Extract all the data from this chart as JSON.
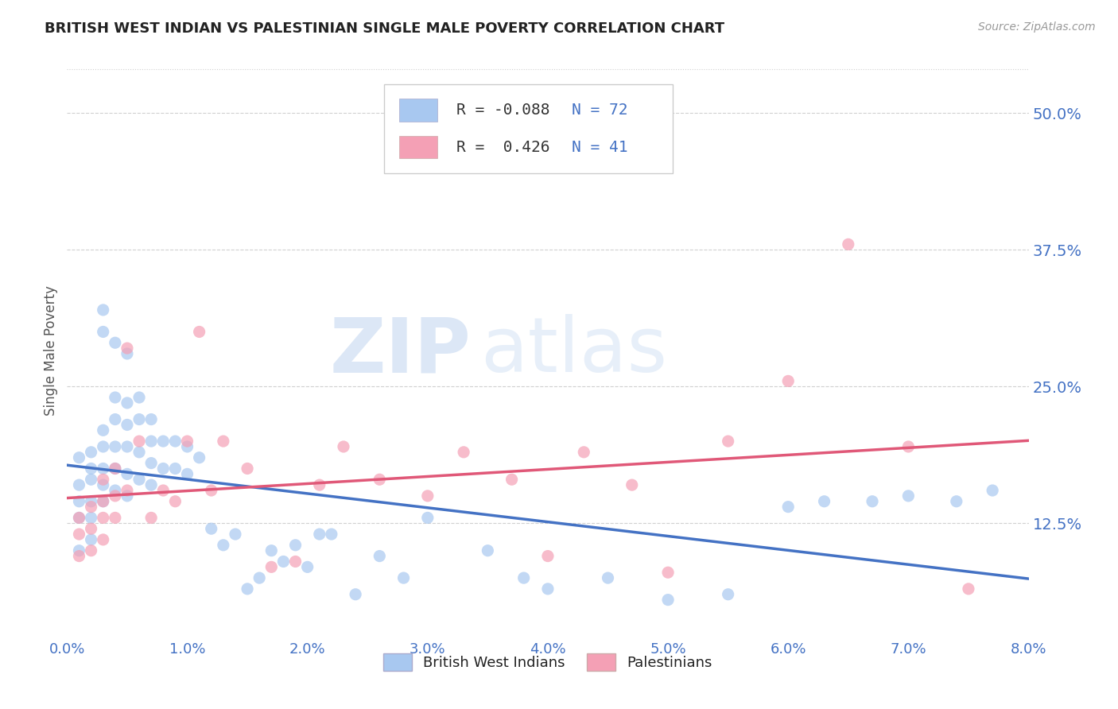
{
  "title": "BRITISH WEST INDIAN VS PALESTINIAN SINGLE MALE POVERTY CORRELATION CHART",
  "source": "Source: ZipAtlas.com",
  "ylabel": "Single Male Poverty",
  "xlim": [
    0.0,
    0.08
  ],
  "ylim": [
    0.02,
    0.545
  ],
  "yticks": [
    0.125,
    0.25,
    0.375,
    0.5
  ],
  "ytick_labels": [
    "12.5%",
    "25.0%",
    "37.5%",
    "50.0%"
  ],
  "xticks": [
    0.0,
    0.01,
    0.02,
    0.03,
    0.04,
    0.05,
    0.06,
    0.07,
    0.08
  ],
  "xtick_labels": [
    "0.0%",
    "1.0%",
    "2.0%",
    "3.0%",
    "4.0%",
    "5.0%",
    "6.0%",
    "7.0%",
    "8.0%"
  ],
  "group1_name": "British West Indians",
  "group1_color": "#a8c8f0",
  "group1_R": -0.088,
  "group1_N": 72,
  "group2_name": "Palestinians",
  "group2_color": "#f4a0b5",
  "group2_R": 0.426,
  "group2_N": 41,
  "trend1_color": "#4472c4",
  "trend2_color": "#e05878",
  "watermark_zip": "ZIP",
  "watermark_atlas": "atlas",
  "background_color": "#ffffff",
  "grid_color": "#d0d0d0",
  "title_color": "#222222",
  "axis_label_color": "#555555",
  "tick_label_color": "#4472c4",
  "legend_text_color": "#333333",
  "legend_val_color": "#4472c4",
  "bwi_x": [
    0.001,
    0.001,
    0.001,
    0.001,
    0.001,
    0.002,
    0.002,
    0.002,
    0.002,
    0.002,
    0.002,
    0.003,
    0.003,
    0.003,
    0.003,
    0.003,
    0.003,
    0.003,
    0.004,
    0.004,
    0.004,
    0.004,
    0.004,
    0.004,
    0.005,
    0.005,
    0.005,
    0.005,
    0.005,
    0.005,
    0.006,
    0.006,
    0.006,
    0.006,
    0.007,
    0.007,
    0.007,
    0.007,
    0.008,
    0.008,
    0.009,
    0.009,
    0.01,
    0.01,
    0.011,
    0.012,
    0.013,
    0.014,
    0.015,
    0.016,
    0.017,
    0.018,
    0.019,
    0.02,
    0.021,
    0.022,
    0.024,
    0.026,
    0.028,
    0.03,
    0.035,
    0.038,
    0.04,
    0.045,
    0.05,
    0.055,
    0.06,
    0.063,
    0.067,
    0.07,
    0.074,
    0.077
  ],
  "bwi_y": [
    0.185,
    0.16,
    0.145,
    0.13,
    0.1,
    0.19,
    0.175,
    0.165,
    0.145,
    0.13,
    0.11,
    0.32,
    0.3,
    0.21,
    0.195,
    0.175,
    0.16,
    0.145,
    0.29,
    0.24,
    0.22,
    0.195,
    0.175,
    0.155,
    0.28,
    0.235,
    0.215,
    0.195,
    0.17,
    0.15,
    0.24,
    0.22,
    0.19,
    0.165,
    0.22,
    0.2,
    0.18,
    0.16,
    0.2,
    0.175,
    0.2,
    0.175,
    0.195,
    0.17,
    0.185,
    0.12,
    0.105,
    0.115,
    0.065,
    0.075,
    0.1,
    0.09,
    0.105,
    0.085,
    0.115,
    0.115,
    0.06,
    0.095,
    0.075,
    0.13,
    0.1,
    0.075,
    0.065,
    0.075,
    0.055,
    0.06,
    0.14,
    0.145,
    0.145,
    0.15,
    0.145,
    0.155
  ],
  "pal_x": [
    0.001,
    0.001,
    0.001,
    0.002,
    0.002,
    0.002,
    0.003,
    0.003,
    0.003,
    0.003,
    0.004,
    0.004,
    0.004,
    0.005,
    0.005,
    0.006,
    0.007,
    0.008,
    0.009,
    0.01,
    0.011,
    0.012,
    0.013,
    0.015,
    0.017,
    0.019,
    0.021,
    0.023,
    0.026,
    0.03,
    0.033,
    0.037,
    0.04,
    0.043,
    0.047,
    0.05,
    0.055,
    0.06,
    0.065,
    0.07,
    0.075
  ],
  "pal_y": [
    0.13,
    0.115,
    0.095,
    0.14,
    0.12,
    0.1,
    0.165,
    0.145,
    0.13,
    0.11,
    0.175,
    0.15,
    0.13,
    0.285,
    0.155,
    0.2,
    0.13,
    0.155,
    0.145,
    0.2,
    0.3,
    0.155,
    0.2,
    0.175,
    0.085,
    0.09,
    0.16,
    0.195,
    0.165,
    0.15,
    0.19,
    0.165,
    0.095,
    0.19,
    0.16,
    0.08,
    0.2,
    0.255,
    0.38,
    0.195,
    0.065
  ]
}
